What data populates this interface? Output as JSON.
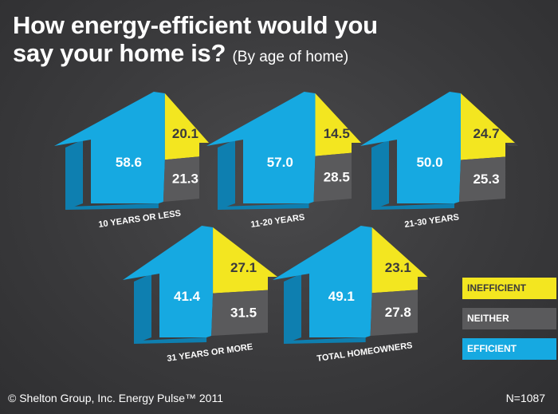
{
  "title": {
    "main_line1": "How energy-efficient would you",
    "main_line2": "say your home is?",
    "subtitle": "(By age of home)"
  },
  "colors": {
    "efficient": "#16a9e1",
    "efficient_dark": "#0e7fb0",
    "neither": "#5a5a5c",
    "neither_dark": "#444446",
    "inefficient": "#f3e620",
    "inefficient_dark": "#c9bd12",
    "legend_neither_text": "#ffffff",
    "legend_inefficient_text": "#3a3a3c",
    "legend_efficient_text": "#ffffff"
  },
  "chart_data": {
    "type": "pie",
    "title": "How energy-efficient would you say your home is? (By age of home)",
    "categories": [
      "Efficient",
      "Neither",
      "Inefficient"
    ],
    "groups": [
      {
        "label": "10 YEARS OR LESS",
        "efficient": 58.6,
        "neither": 21.3,
        "inefficient": 20.1
      },
      {
        "label": "11-20 YEARS",
        "efficient": 57.0,
        "neither": 28.5,
        "inefficient": 14.5
      },
      {
        "label": "21-30 YEARS",
        "efficient": 50.0,
        "neither": 25.3,
        "inefficient": 24.7
      },
      {
        "label": "31 YEARS OR MORE",
        "efficient": 41.4,
        "neither": 31.5,
        "inefficient": 27.1
      },
      {
        "label": "TOTAL HOMEOWNERS",
        "efficient": 49.1,
        "neither": 27.8,
        "inefficient": 23.1
      }
    ],
    "value_labels": [
      {
        "efficient": "58.6",
        "neither": "21.3",
        "inefficient": "20.1"
      },
      {
        "efficient": "57.0",
        "neither": "28.5",
        "inefficient": "14.5"
      },
      {
        "efficient": "50.0",
        "neither": "25.3",
        "inefficient": "24.7"
      },
      {
        "efficient": "41.4",
        "neither": "31.5",
        "inefficient": "27.1"
      },
      {
        "efficient": "49.1",
        "neither": "27.8",
        "inefficient": "23.1"
      }
    ]
  },
  "legend": {
    "inefficient": "INEFFICIENT",
    "neither": "NEITHER",
    "efficient": "EFFICIENT"
  },
  "footer": {
    "source": "© Shelton Group, Inc. Energy Pulse™ 2011",
    "sample": "N=1087"
  }
}
